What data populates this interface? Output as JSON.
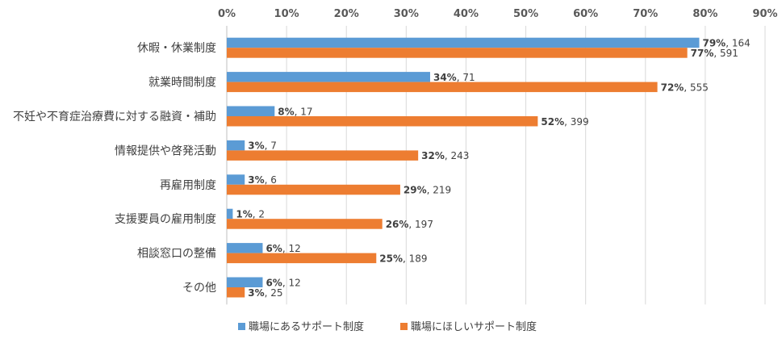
{
  "chart_data": {
    "type": "bar",
    "orientation": "horizontal",
    "xlim": [
      0,
      90
    ],
    "x_ticks": [
      "0%",
      "10%",
      "20%",
      "30%",
      "40%",
      "50%",
      "60%",
      "70%",
      "80%",
      "90%"
    ],
    "grid": true,
    "legend_position": "bottom",
    "categories": [
      "休暇・休業制度",
      "就業時間制度",
      "不妊や不育症治療費に対する融資・補助",
      "情報提供や啓発活動",
      "再雇用制度",
      "支援要員の雇用制度",
      "相談窓口の整備",
      "その他"
    ],
    "series": [
      {
        "name": "職場にあるサポート制度",
        "color": "#5b9bd5",
        "values": [
          79,
          34,
          8,
          3,
          3,
          1,
          6,
          6
        ],
        "percent_labels": [
          "79%",
          "34%",
          "8%",
          "3%",
          "3%",
          "1%",
          "6%",
          "6%"
        ],
        "count_labels": [
          ", 164",
          ", 71",
          ", 17",
          ", 7",
          ", 6",
          ", 2",
          ", 12",
          ", 12"
        ]
      },
      {
        "name": "職場にほしいサポート制度",
        "color": "#ed7d31",
        "values": [
          77,
          72,
          52,
          32,
          29,
          26,
          25,
          3
        ],
        "percent_labels": [
          "77%",
          "72%",
          "52%",
          "32%",
          "29%",
          "26%",
          "25%",
          "3%"
        ],
        "count_labels": [
          ", 591",
          ", 555",
          ", 399",
          ", 243",
          ", 219",
          ", 197",
          ", 189",
          ", 25"
        ]
      }
    ]
  }
}
